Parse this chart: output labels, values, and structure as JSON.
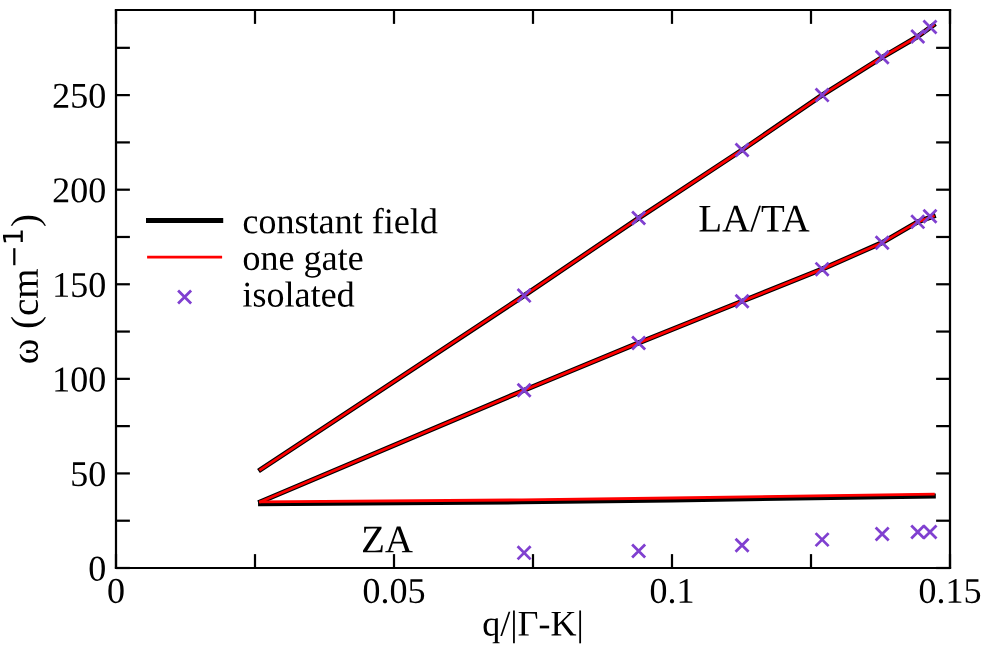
{
  "chart_data": {
    "type": "line",
    "xlabel": "q/|Γ-K|",
    "ylabel": "ω (cm$^{−1}$)",
    "xlim": [
      0,
      0.15
    ],
    "ylim": [
      0,
      295
    ],
    "xticks": [
      0,
      {
        "value": 0.025,
        "label": null
      },
      0.05,
      {
        "value": 0.075,
        "label": null
      },
      {
        "value": 0.1,
        "label": "0.1"
      },
      {
        "value": 0.125,
        "label": null
      },
      0.15
    ],
    "yticks": [
      0,
      {
        "value": 25,
        "label": null
      },
      50,
      {
        "value": 75,
        "label": null
      },
      100,
      {
        "value": 125,
        "label": null
      },
      150,
      {
        "value": 175,
        "label": null
      },
      200,
      {
        "value": 225,
        "label": null
      },
      250,
      {
        "value": 275,
        "label": null
      }
    ],
    "grid": false,
    "legend": "left",
    "series": [
      {
        "name": "constant field",
        "color": "#000000",
        "x": [
          0.026,
          0.0734,
          0.094,
          0.1126,
          0.127,
          0.1378,
          0.1442,
          0.147
        ],
        "values": [
          52,
          144,
          185,
          221,
          250,
          270,
          281,
          287
        ]
      },
      {
        "color": "#000000",
        "x": [
          0.026,
          0.0734,
          0.094,
          0.1126,
          0.127,
          0.1378,
          0.1442,
          0.147
        ],
        "values": [
          35,
          94,
          119,
          141,
          158,
          172,
          183,
          186
        ]
      },
      {
        "color": "#000000",
        "x": [
          0.026,
          0.073,
          0.1,
          0.147
        ],
        "values": [
          34,
          35,
          36,
          38
        ]
      },
      {
        "name": "one gate",
        "color": "#ff0000",
        "x": [
          0.026,
          0.0734,
          0.094,
          0.1126,
          0.127,
          0.1378,
          0.1442,
          0.147
        ],
        "values": [
          52,
          144,
          185,
          221,
          250,
          270,
          281,
          287
        ]
      },
      {
        "color": "#ff0000",
        "x": [
          0.026,
          0.0734,
          0.094,
          0.1126,
          0.127,
          0.1378,
          0.1442,
          0.147
        ],
        "values": [
          35,
          94,
          119,
          141,
          158,
          172,
          183,
          186
        ]
      },
      {
        "color": "#ff0000",
        "x": [
          0.026,
          0.073,
          0.1,
          0.147
        ],
        "values": [
          35,
          36,
          37,
          39
        ]
      },
      {
        "name": "isolated",
        "type": "scatter",
        "marker": "cross",
        "color": "#8040d0",
        "x": [
          0.0734,
          0.094,
          0.1126,
          0.127,
          0.1378,
          0.1442,
          0.1464,
          0.0734,
          0.094,
          0.1126,
          0.127,
          0.1378,
          0.1442,
          0.1464,
          0.0734,
          0.094,
          0.1126,
          0.127,
          0.1378,
          0.1442,
          0.1464
        ],
        "values": [
          144,
          185,
          221,
          250,
          270,
          281,
          286,
          94,
          119,
          141,
          158,
          172,
          183,
          186,
          8,
          9,
          12,
          15,
          18,
          19,
          19
        ]
      }
    ],
    "annotations": [
      "LA/TA",
      "ZA"
    ]
  }
}
